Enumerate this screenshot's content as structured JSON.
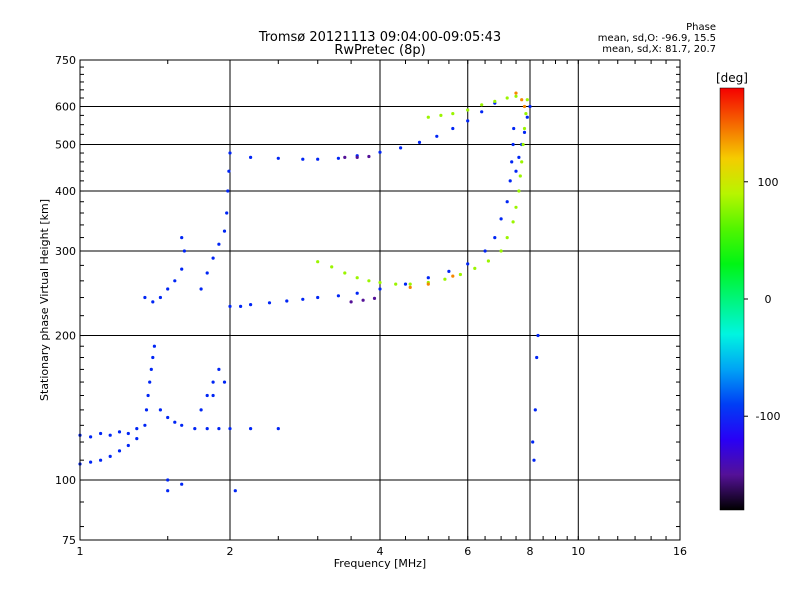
{
  "header": {
    "title_line1": "Tromsø 20121113 09:04:00-09:05:43",
    "title_line2": "RwPretec (8p)"
  },
  "stats": {
    "heading": "Phase",
    "line_o": "mean, sd,O: -96.9, 15.5",
    "line_x": "mean, sd,X: 81.7, 20.7"
  },
  "colorbar": {
    "unit_label": "[deg]",
    "range": [
      -180,
      180
    ],
    "tick_labels": [
      "100",
      "0",
      "-100"
    ],
    "tick_values": [
      100,
      0,
      -100
    ]
  },
  "chart_data": {
    "type": "scatter",
    "xlabel": "Frequency [MHz]",
    "ylabel": "Stationary phase Virtual Height [km]",
    "xscale": "log",
    "yscale": "log",
    "xlim": [
      1,
      16
    ],
    "ylim": [
      75,
      750
    ],
    "grid": true,
    "x_ticks": [
      1,
      2,
      4,
      6,
      8,
      10,
      16
    ],
    "x_tick_labels": [
      "1",
      "2",
      "4",
      "6",
      "8",
      "10",
      "16"
    ],
    "y_ticks": [
      75,
      100,
      200,
      300,
      400,
      500,
      600,
      750
    ],
    "y_tick_labels": [
      "75",
      "100",
      "200",
      "300",
      "400",
      "500",
      "600",
      "750"
    ],
    "series": [
      {
        "name": "O",
        "color_value": -96.9,
        "points": [
          [
            1.0,
            124
          ],
          [
            1.05,
            123
          ],
          [
            1.1,
            125
          ],
          [
            1.15,
            124
          ],
          [
            1.2,
            126
          ],
          [
            1.25,
            125
          ],
          [
            1.3,
            128
          ],
          [
            1.0,
            108
          ],
          [
            1.05,
            109
          ],
          [
            1.1,
            110
          ],
          [
            1.15,
            112
          ],
          [
            1.2,
            115
          ],
          [
            1.25,
            118
          ],
          [
            1.3,
            122
          ],
          [
            1.35,
            130
          ],
          [
            1.36,
            140
          ],
          [
            1.37,
            150
          ],
          [
            1.38,
            160
          ],
          [
            1.39,
            170
          ],
          [
            1.4,
            180
          ],
          [
            1.41,
            190
          ],
          [
            1.45,
            140
          ],
          [
            1.5,
            135
          ],
          [
            1.55,
            132
          ],
          [
            1.6,
            130
          ],
          [
            1.7,
            128
          ],
          [
            1.8,
            128
          ],
          [
            1.9,
            128
          ],
          [
            2.0,
            128
          ],
          [
            2.2,
            128
          ],
          [
            2.5,
            128
          ],
          [
            1.75,
            140
          ],
          [
            1.8,
            150
          ],
          [
            1.85,
            160
          ],
          [
            1.9,
            170
          ],
          [
            1.95,
            160
          ],
          [
            1.85,
            150
          ],
          [
            1.35,
            240
          ],
          [
            1.4,
            235
          ],
          [
            1.45,
            240
          ],
          [
            1.5,
            250
          ],
          [
            1.55,
            260
          ],
          [
            1.6,
            275
          ],
          [
            1.62,
            300
          ],
          [
            1.6,
            320
          ],
          [
            1.75,
            250
          ],
          [
            1.8,
            270
          ],
          [
            1.85,
            290
          ],
          [
            1.9,
            310
          ],
          [
            1.95,
            330
          ],
          [
            1.97,
            360
          ],
          [
            1.98,
            400
          ],
          [
            1.99,
            440
          ],
          [
            2.0,
            480
          ],
          [
            2.0,
            230
          ],
          [
            2.1,
            230
          ],
          [
            2.2,
            232
          ],
          [
            2.4,
            234
          ],
          [
            2.6,
            236
          ],
          [
            2.8,
            238
          ],
          [
            3.0,
            240
          ],
          [
            3.3,
            242
          ],
          [
            3.6,
            245
          ],
          [
            4.0,
            250
          ],
          [
            4.5,
            256
          ],
          [
            5.0,
            264
          ],
          [
            5.5,
            272
          ],
          [
            6.0,
            282
          ],
          [
            6.5,
            300
          ],
          [
            6.8,
            320
          ],
          [
            7.0,
            350
          ],
          [
            7.2,
            380
          ],
          [
            7.3,
            420
          ],
          [
            7.35,
            460
          ],
          [
            7.4,
            500
          ],
          [
            7.42,
            540
          ],
          [
            2.2,
            470
          ],
          [
            2.5,
            468
          ],
          [
            2.8,
            466
          ],
          [
            3.0,
            466
          ],
          [
            3.3,
            468
          ],
          [
            3.6,
            474
          ],
          [
            4.0,
            482
          ],
          [
            4.4,
            492
          ],
          [
            4.8,
            505
          ],
          [
            5.2,
            520
          ],
          [
            5.6,
            540
          ],
          [
            6.0,
            560
          ],
          [
            6.4,
            585
          ],
          [
            6.8,
            610
          ],
          [
            7.5,
            440
          ],
          [
            7.6,
            470
          ],
          [
            7.7,
            500
          ],
          [
            7.8,
            530
          ],
          [
            7.9,
            570
          ],
          [
            8.0,
            600
          ],
          [
            8.1,
            120
          ],
          [
            8.2,
            140
          ],
          [
            8.25,
            180
          ],
          [
            8.3,
            200
          ],
          [
            8.15,
            110
          ],
          [
            1.5,
            100
          ],
          [
            1.6,
            98
          ],
          [
            2.05,
            95
          ],
          [
            1.5,
            95
          ]
        ]
      },
      {
        "name": "X",
        "color_value": 81.7,
        "points": [
          [
            3.0,
            285
          ],
          [
            3.2,
            278
          ],
          [
            3.4,
            270
          ],
          [
            3.6,
            264
          ],
          [
            3.8,
            260
          ],
          [
            4.0,
            258
          ],
          [
            4.3,
            256
          ],
          [
            4.6,
            256
          ],
          [
            5.0,
            258
          ],
          [
            5.4,
            262
          ],
          [
            5.8,
            268
          ],
          [
            6.2,
            276
          ],
          [
            6.6,
            286
          ],
          [
            7.0,
            300
          ],
          [
            7.2,
            320
          ],
          [
            7.4,
            345
          ],
          [
            7.5,
            370
          ],
          [
            7.6,
            400
          ],
          [
            7.65,
            430
          ],
          [
            7.7,
            460
          ],
          [
            7.75,
            500
          ],
          [
            7.8,
            540
          ],
          [
            7.85,
            580
          ],
          [
            7.9,
            620
          ],
          [
            5.0,
            570
          ],
          [
            5.3,
            575
          ],
          [
            5.6,
            580
          ],
          [
            6.0,
            590
          ],
          [
            6.4,
            605
          ],
          [
            6.8,
            615
          ],
          [
            7.2,
            625
          ],
          [
            7.5,
            630
          ]
        ]
      },
      {
        "name": "",
        "color_value": -150,
        "points": [
          [
            3.4,
            470
          ],
          [
            3.6,
            470
          ],
          [
            3.8,
            472
          ],
          [
            3.5,
            235
          ],
          [
            3.7,
            237
          ],
          [
            3.9,
            239
          ]
        ]
      },
      {
        "name": "",
        "color_value": 140,
        "points": [
          [
            7.5,
            640
          ],
          [
            7.7,
            620
          ],
          [
            4.6,
            252
          ],
          [
            5.0,
            256
          ],
          [
            5.6,
            266
          ],
          [
            7.8,
            600
          ]
        ]
      }
    ]
  }
}
